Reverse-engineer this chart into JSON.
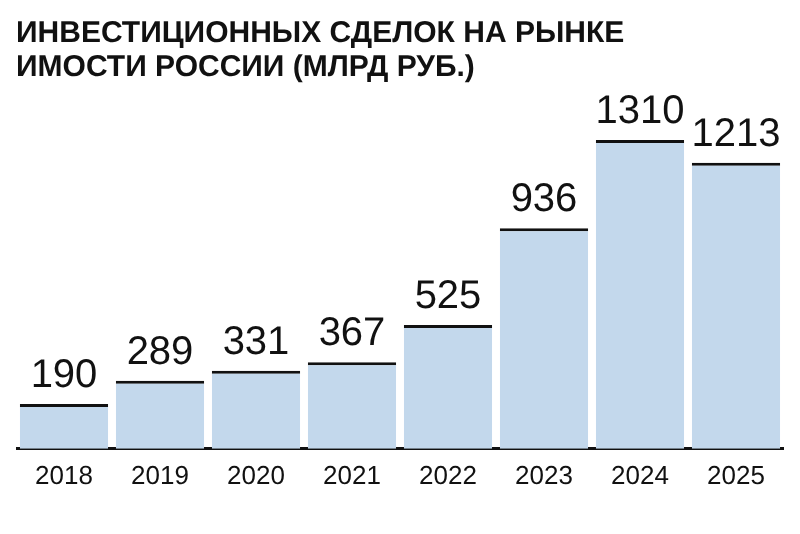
{
  "chart_data": {
    "type": "bar",
    "title": "ИНВЕСТИЦИОННЫХ СДЕЛОК НА РЫНКЕ",
    "subtitle": "ИМОСТИ РОССИИ (МЛРД РУБ.)",
    "categories": [
      "2018",
      "2019",
      "2020",
      "2021",
      "2022",
      "2023",
      "2024",
      "2025"
    ],
    "values": [
      190,
      289,
      331,
      367,
      525,
      936,
      1310,
      1213
    ],
    "color": "#c3d8ec",
    "data_labels": true
  }
}
